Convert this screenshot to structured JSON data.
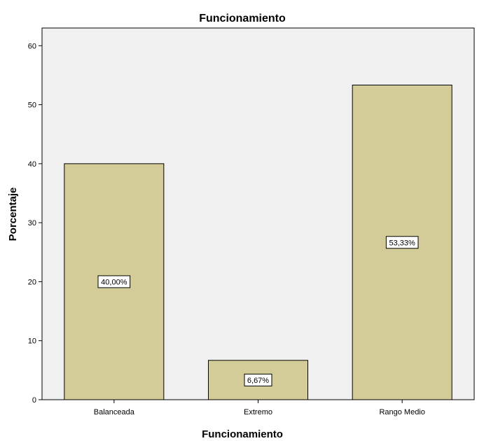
{
  "chart_data": {
    "type": "bar",
    "title": "Funcionamiento",
    "xlabel": "Funcionamiento",
    "ylabel": "Porcentaje",
    "categories": [
      "Balanceada",
      "Extremo",
      "Rango Medio"
    ],
    "values": [
      40.0,
      6.67,
      53.33
    ],
    "data_labels": [
      "40,00%",
      "6,67%",
      "53,33%"
    ],
    "ylim": [
      0,
      63
    ],
    "yticks": [
      0,
      10,
      20,
      30,
      40,
      50,
      60
    ],
    "ytick_labels": [
      "0",
      "10",
      "20",
      "30",
      "40",
      "50",
      "60"
    ],
    "grid": false,
    "legend": "none",
    "colors": {
      "bar_fill": "#d4cc98",
      "bar_stroke": "#000000",
      "plot_background": "#f0f0f0",
      "label_box_fill": "#ffffff"
    }
  }
}
